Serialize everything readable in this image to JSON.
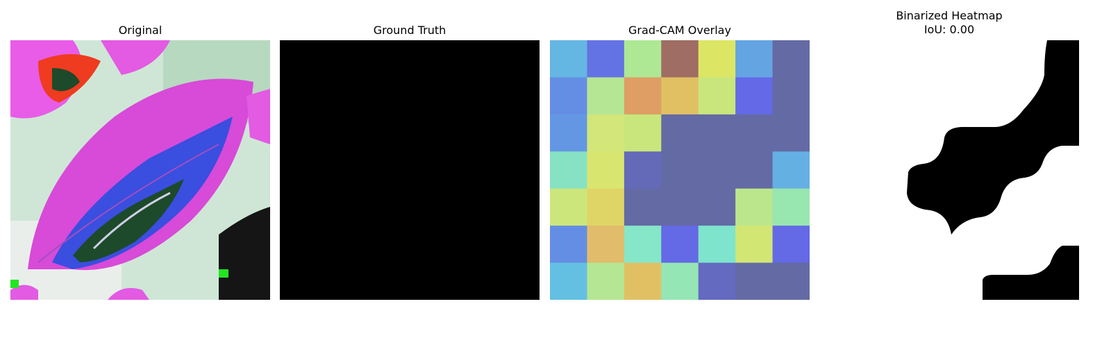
{
  "panels": {
    "original": {
      "title": "Original"
    },
    "ground_truth": {
      "title": "Ground Truth"
    },
    "gradcam": {
      "title": "Grad-CAM Overlay",
      "grid": [
        [
          "#64b6e3",
          "#6473e3",
          "#aee894",
          "#9f6d63",
          "#dce664",
          "#64a4e3",
          "#646aa4"
        ],
        [
          "#648ee3",
          "#b4e694",
          "#de9e64",
          "#e1c064",
          "#c8e67c",
          "#6469e7",
          "#646aa4"
        ],
        [
          "#6497e3",
          "#d2e67a",
          "#c8e67c",
          "#646aa4",
          "#646aa4",
          "#646aa4",
          "#646aa4"
        ],
        [
          "#86e2c3",
          "#d8e670",
          "#646ab8",
          "#646aa4",
          "#646aa4",
          "#646aa4",
          "#64b0e3"
        ],
        [
          "#cce67c",
          "#dfd466",
          "#646aa4",
          "#646aa4",
          "#646aa4",
          "#bce68c",
          "#98e6b0"
        ],
        [
          "#648ee3",
          "#e1bc6a",
          "#86e6c8",
          "#6469e6",
          "#7ee4cc",
          "#d2e674",
          "#6469e6"
        ],
        [
          "#64c0e3",
          "#b4e694",
          "#e1c064",
          "#94e6b4",
          "#646ac0",
          "#646aa4",
          "#646aa4"
        ]
      ]
    },
    "binarized": {
      "title_line1": "Binarized Heatmap",
      "title_line2": "IoU: 0.00"
    }
  }
}
